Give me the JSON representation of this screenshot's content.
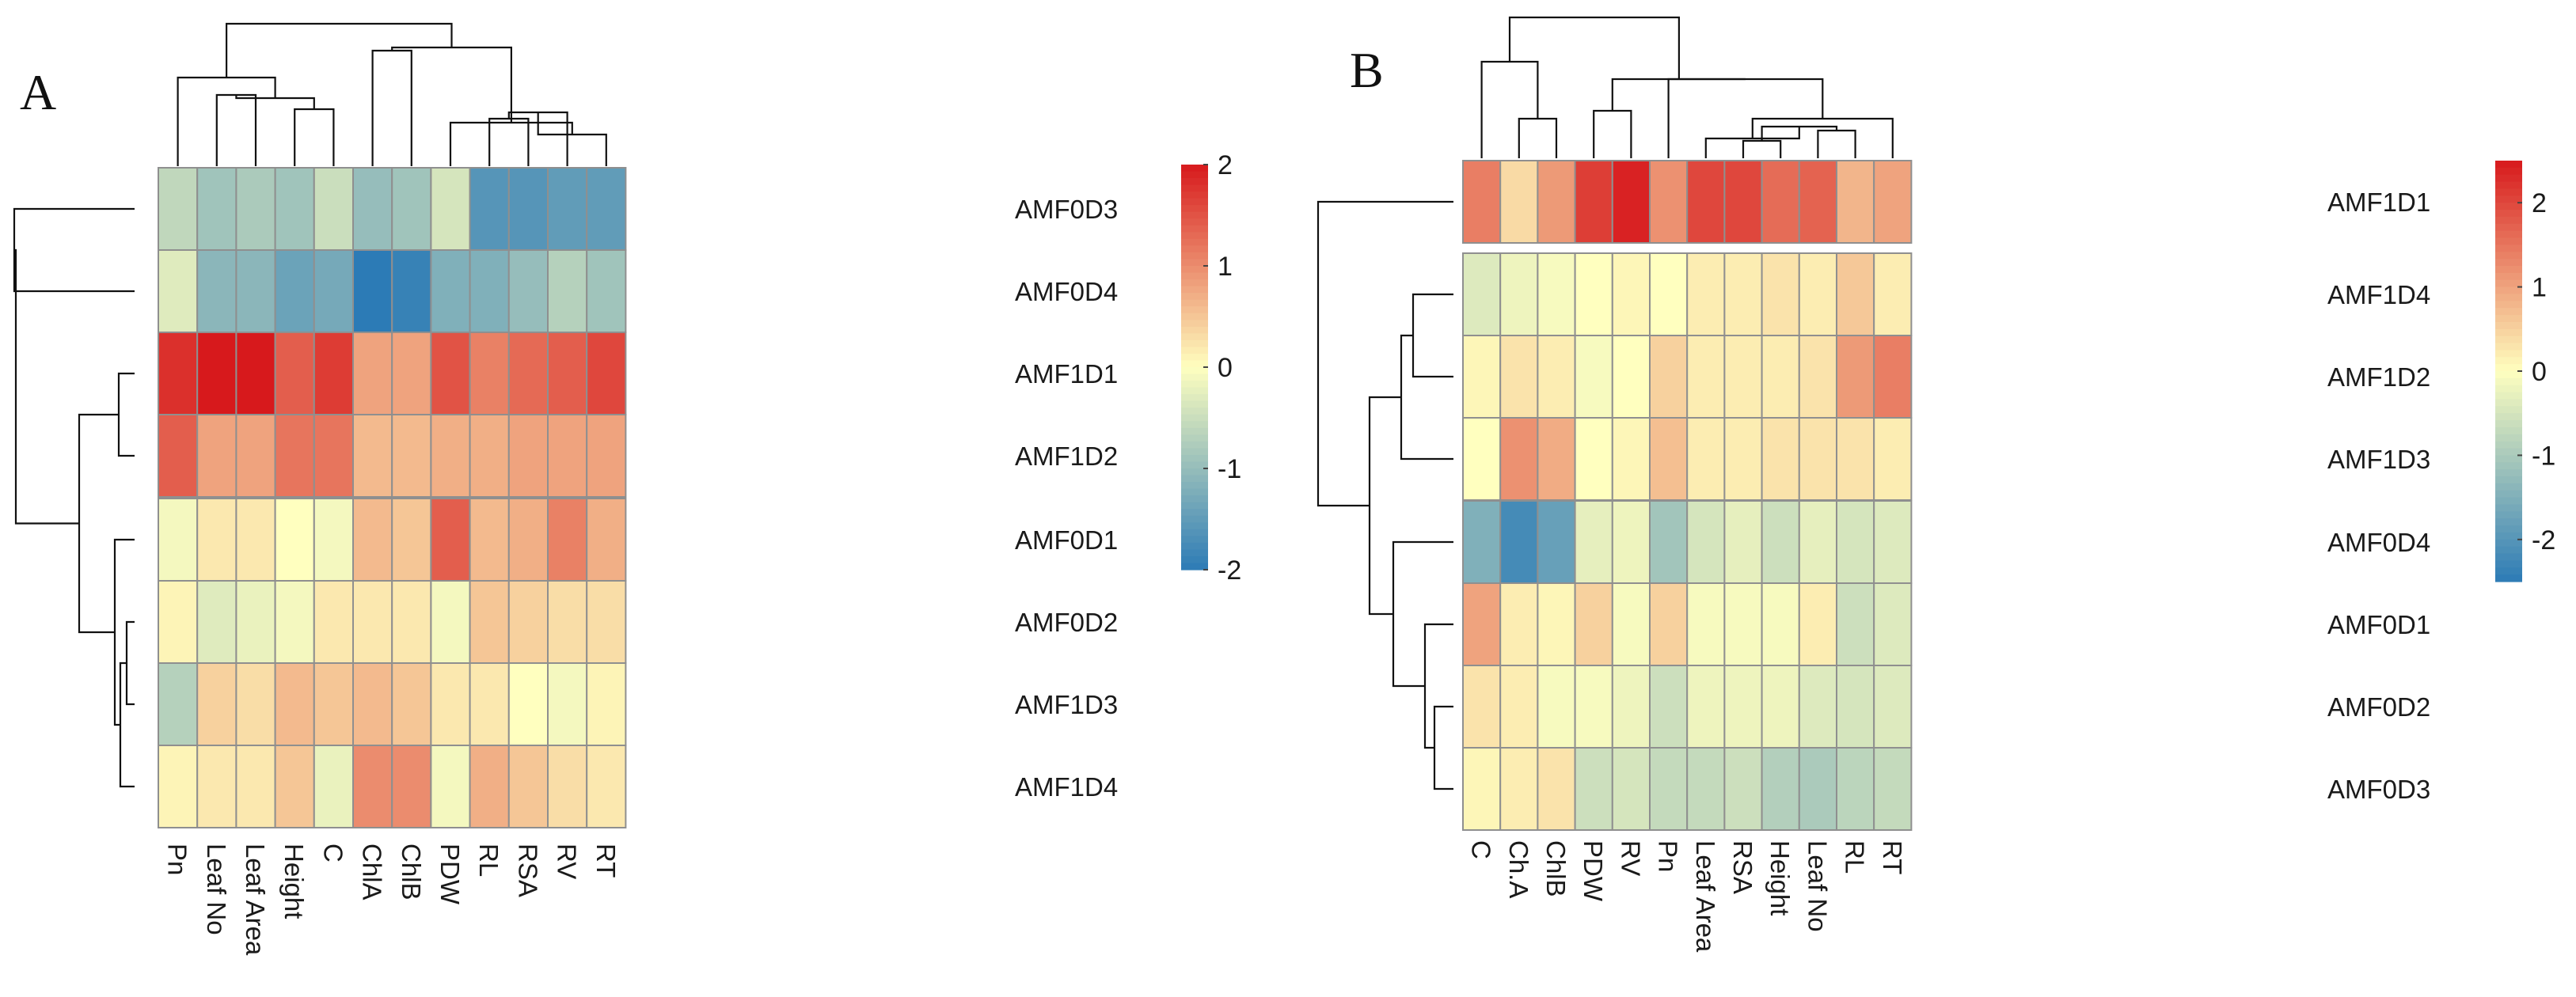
{
  "chart_data": [
    {
      "type": "heatmap",
      "panel": "A",
      "row_labels": [
        "AMF0D3",
        "AMF0D4",
        "AMF1D1",
        "AMF1D2",
        "AMF0D1",
        "AMF0D2",
        "AMF1D3",
        "AMF1D4"
      ],
      "col_labels": [
        "Pn",
        "Leaf No",
        "Leaf Area",
        "Height",
        "C",
        "ChlA",
        "ChlB",
        "PDW",
        "RL",
        "RSA",
        "RV",
        "RT"
      ],
      "row_groups": [
        2,
        2,
        4
      ],
      "values": [
        [
          -0.6,
          -0.9,
          -0.8,
          -0.9,
          -0.5,
          -1.0,
          -0.9,
          -0.4,
          -1.6,
          -1.6,
          -1.5,
          -1.5
        ],
        [
          -0.3,
          -1.1,
          -1.1,
          -1.4,
          -1.3,
          -2.0,
          -1.9,
          -1.2,
          -1.2,
          -1.0,
          -0.7,
          -0.9
        ],
        [
          1.8,
          2.0,
          2.1,
          1.4,
          1.7,
          0.8,
          0.8,
          1.5,
          1.1,
          1.3,
          1.4,
          1.6
        ],
        [
          1.4,
          0.8,
          0.8,
          1.2,
          1.2,
          0.6,
          0.6,
          0.7,
          0.7,
          0.8,
          0.8,
          0.8
        ],
        [
          -0.1,
          0.2,
          0.2,
          0.0,
          -0.1,
          0.6,
          0.5,
          1.4,
          0.6,
          0.7,
          1.1,
          0.7
        ],
        [
          0.1,
          -0.3,
          -0.2,
          -0.1,
          0.2,
          0.2,
          0.2,
          -0.1,
          0.5,
          0.4,
          0.3,
          0.3
        ],
        [
          -0.7,
          0.4,
          0.3,
          0.6,
          0.5,
          0.6,
          0.5,
          0.2,
          0.2,
          0.0,
          -0.1,
          0.1
        ],
        [
          0.1,
          0.2,
          0.2,
          0.5,
          -0.2,
          1.0,
          1.0,
          -0.1,
          0.7,
          0.5,
          0.3,
          0.2
        ]
      ],
      "colorbar": {
        "min": -2,
        "max": 2,
        "ticks": [
          "2",
          "1",
          "0",
          "-1",
          "-2"
        ]
      },
      "colors": {
        "low": "#2c7bb6",
        "mid": "#ffffbf",
        "high": "#d7191c"
      }
    },
    {
      "type": "heatmap",
      "panel": "B",
      "row_labels": [
        "AMF1D1",
        "AMF1D4",
        "AMF1D2",
        "AMF1D3",
        "AMF0D4",
        "AMF0D1",
        "AMF0D2",
        "AMF0D3"
      ],
      "col_labels": [
        "C",
        "Ch.A",
        "ChlB",
        "PDW",
        "RV",
        "Pn",
        "Leaf Area",
        "RSA",
        "Height",
        "Leaf No",
        "RL",
        "RT"
      ],
      "row_groups": [
        1,
        3,
        4
      ],
      "values": [
        [
          1.4,
          0.4,
          1.1,
          2.1,
          2.4,
          1.2,
          2.0,
          2.0,
          1.6,
          1.7,
          0.8,
          1.0
        ],
        [
          -0.4,
          -0.2,
          -0.1,
          0.0,
          0.1,
          0.0,
          0.2,
          0.2,
          0.3,
          0.2,
          0.6,
          0.2
        ],
        [
          0.1,
          0.3,
          0.2,
          -0.1,
          0.0,
          0.5,
          0.2,
          0.2,
          0.2,
          0.3,
          1.1,
          1.4
        ],
        [
          0.0,
          1.2,
          0.9,
          0.0,
          0.1,
          0.7,
          0.2,
          0.2,
          0.3,
          0.3,
          0.3,
          0.2
        ],
        [
          -1.5,
          -2.2,
          -1.8,
          -0.3,
          -0.2,
          -1.1,
          -0.5,
          -0.3,
          -0.6,
          -0.3,
          -0.5,
          -0.4
        ],
        [
          1.0,
          0.2,
          0.1,
          0.5,
          -0.1,
          0.5,
          -0.1,
          -0.1,
          -0.1,
          0.2,
          -0.6,
          -0.4
        ],
        [
          0.3,
          0.2,
          -0.1,
          -0.1,
          -0.2,
          -0.6,
          -0.2,
          -0.2,
          -0.2,
          -0.4,
          -0.5,
          -0.4
        ],
        [
          0.1,
          0.2,
          0.3,
          -0.6,
          -0.5,
          -0.7,
          -0.7,
          -0.6,
          -0.9,
          -1.0,
          -0.8,
          -0.7
        ]
      ],
      "colorbar": {
        "min": -2.5,
        "max": 2.5,
        "ticks": [
          "2",
          "1",
          "0",
          "-1",
          "-2"
        ]
      },
      "colors": {
        "low": "#2c7bb6",
        "mid": "#ffffbf",
        "high": "#d7191c"
      }
    }
  ]
}
